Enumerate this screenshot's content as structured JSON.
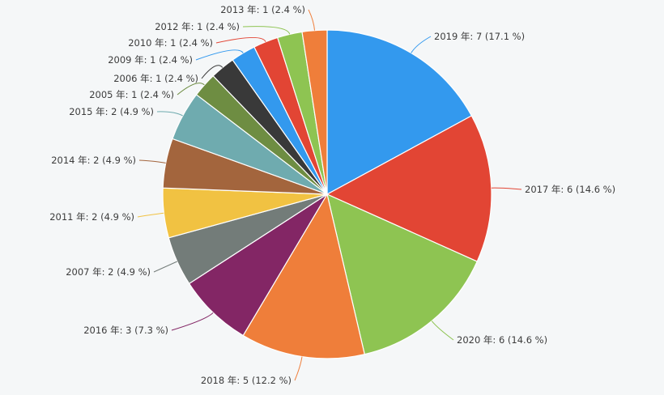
{
  "chart_data": {
    "type": "pie",
    "title": "",
    "start_angle_deg": 0,
    "direction": "clockwise",
    "label_format": "{label}: {value} ({percent})",
    "slices": [
      {
        "label": "2019 年",
        "value": 7,
        "percent": "17.1 %",
        "color": "#3399ee"
      },
      {
        "label": "2017 年",
        "value": 6,
        "percent": "14.6 %",
        "color": "#e24534"
      },
      {
        "label": "2020 年",
        "value": 6,
        "percent": "14.6 %",
        "color": "#8ec452"
      },
      {
        "label": "2018 年",
        "value": 5,
        "percent": "12.2 %",
        "color": "#ef7e3a"
      },
      {
        "label": "2016 年",
        "value": 3,
        "percent": "7.3 %",
        "color": "#832665"
      },
      {
        "label": "2007 年",
        "value": 2,
        "percent": "4.9 %",
        "color": "#737c79"
      },
      {
        "label": "2011 年",
        "value": 2,
        "percent": "4.9 %",
        "color": "#f1c242"
      },
      {
        "label": "2014 年",
        "value": 2,
        "percent": "4.9 %",
        "color": "#a3653d"
      },
      {
        "label": "2015 年",
        "value": 2,
        "percent": "4.9 %",
        "color": "#6fabaf"
      },
      {
        "label": "2005 年",
        "value": 1,
        "percent": "2.4 %",
        "color": "#6e8d42"
      },
      {
        "label": "2006 年",
        "value": 1,
        "percent": "2.4 %",
        "color": "#393939"
      },
      {
        "label": "2009 年",
        "value": 1,
        "percent": "2.4 %",
        "color": "#3399ee"
      },
      {
        "label": "2010 年",
        "value": 1,
        "percent": "2.4 %",
        "color": "#e24534"
      },
      {
        "label": "2012 年",
        "value": 1,
        "percent": "2.4 %",
        "color": "#8ec452"
      },
      {
        "label": "2013 年",
        "value": 1,
        "percent": "2.4 %",
        "color": "#ef7e3a"
      }
    ]
  }
}
